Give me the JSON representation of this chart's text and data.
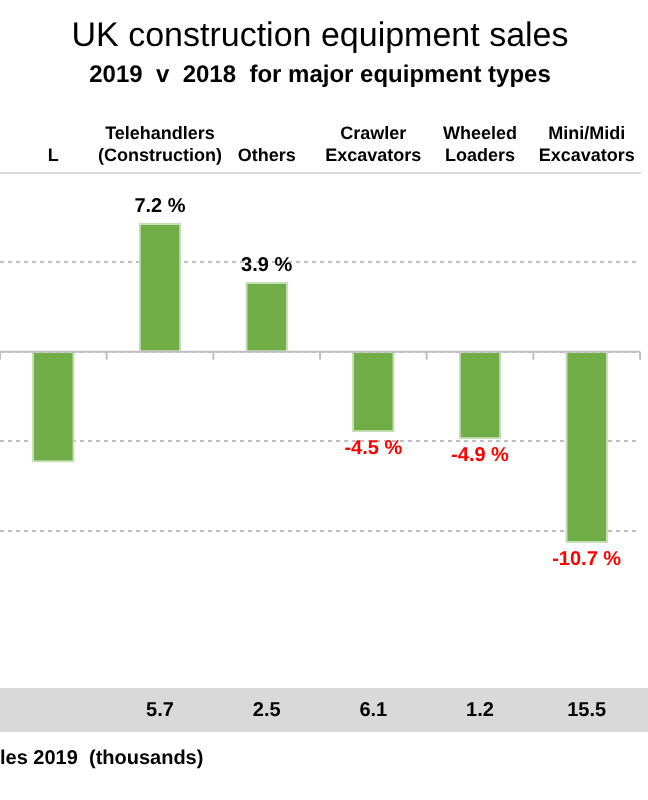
{
  "chart_data": {
    "type": "bar",
    "title": "UK construction equipment sales",
    "subtitle": "2019  v  2018  for major equipment types",
    "categories": [
      "L",
      "Telehandlers (Construction)",
      "Others",
      "Crawler Excavators",
      "Wheeled Loaders",
      "Mini/Midi Excavators"
    ],
    "values": [
      -6.2,
      7.2,
      3.9,
      -4.5,
      -4.9,
      -10.7
    ],
    "color": "#70ad47",
    "value_labels": [
      null,
      "7.2 %",
      "3.9 %",
      "-4.5 %",
      "-4.9 %",
      "-10.7 %"
    ],
    "yticks": [
      {
        "value": -10,
        "label": null
      },
      {
        "value": -5,
        "label": null
      },
      {
        "value": 0,
        "label": null
      },
      {
        "value": 5,
        "label": null
      }
    ],
    "grid": "y",
    "tick_labels": "x",
    "annotations": [
      "5.7",
      "2.5",
      "6.1",
      "1.2",
      "15.5",
      "les 2019  (thousands)"
    ]
  }
}
